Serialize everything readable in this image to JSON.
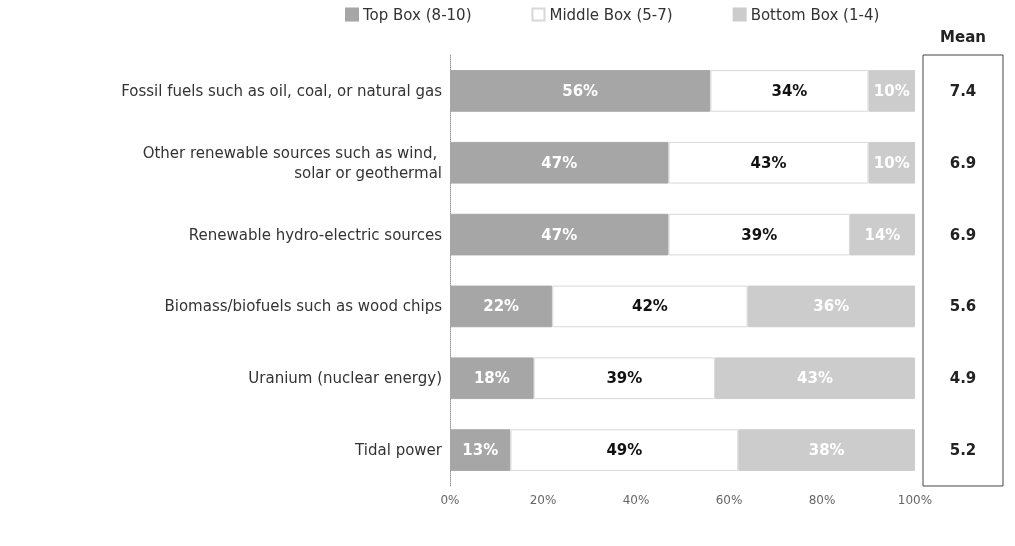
{
  "chart_data": {
    "type": "bar",
    "orientation": "horizontal",
    "stacked": true,
    "categories": [
      "Fossil fuels such as oil, coal, or natural gas",
      "Other renewable sources such as wind, solar or geothermal",
      "Renewable hydro-electric sources",
      "Biomass/biofuels such as wood chips",
      "Uranium (nuclear energy)",
      "Tidal power"
    ],
    "series": [
      {
        "name": "Top Box (8-10)",
        "color": "#a6a6a6",
        "values": [
          56,
          47,
          47,
          22,
          18,
          13
        ],
        "value_labels": [
          "56%",
          "47%",
          "47%",
          "22%",
          "18%",
          "13%"
        ]
      },
      {
        "name": "Middle Box (5-7)",
        "color": "#ffffff",
        "values": [
          34,
          43,
          39,
          42,
          39,
          49
        ],
        "value_labels": [
          "34%",
          "43%",
          "39%",
          "42%",
          "39%",
          "49%"
        ]
      },
      {
        "name": "Bottom Box (1-4)",
        "color": "#cccccc",
        "values": [
          10,
          10,
          14,
          36,
          43,
          38
        ],
        "value_labels": [
          "10%",
          "10%",
          "14%",
          "36%",
          "43%",
          "38%"
        ]
      }
    ],
    "xlim": [
      0,
      100
    ],
    "xticks": [
      {
        "value": 0,
        "label": "0%"
      },
      {
        "value": 20,
        "label": "20%"
      },
      {
        "value": 40,
        "label": "40%"
      },
      {
        "value": 60,
        "label": "60%"
      },
      {
        "value": 80,
        "label": "80%"
      },
      {
        "value": 100,
        "label": "100%"
      }
    ],
    "annotations": [
      "Mean",
      "7.4",
      "6.9",
      "6.9",
      "5.6",
      "4.9",
      "5.2"
    ],
    "legend": "top left",
    "grid": false
  }
}
